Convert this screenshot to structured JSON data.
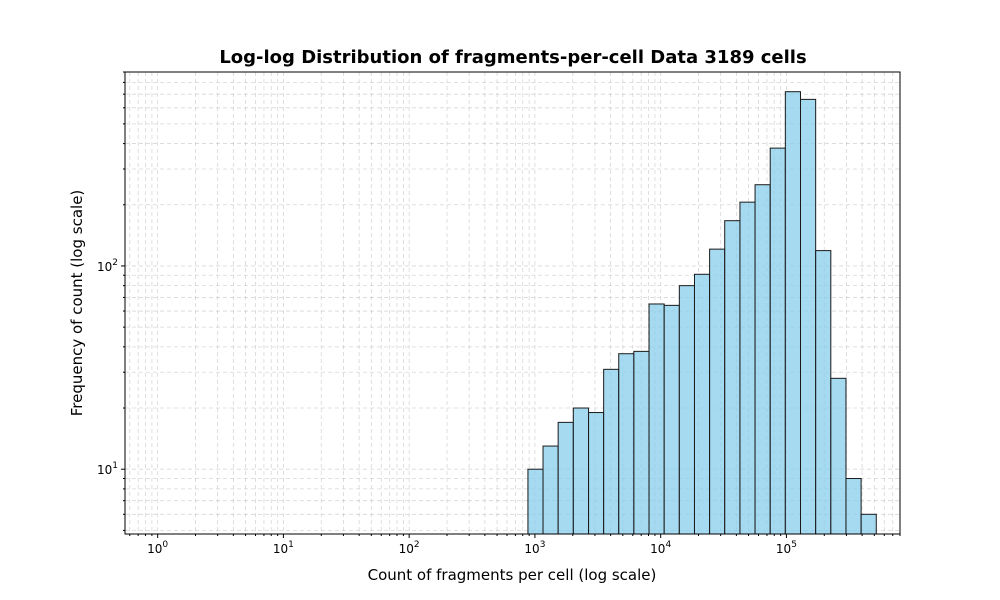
{
  "chart_data": {
    "type": "bar",
    "title": "Log-log Distribution of fragments-per-cell Data 3189 cells",
    "xlabel": "Count of fragments per cell (log scale)",
    "ylabel": "Frequency of count (log scale)",
    "x_scale": "log",
    "y_scale": "log",
    "xlim": [
      0.55,
      800000
    ],
    "ylim": [
      4.8,
      900
    ],
    "grid": true,
    "bar_color": "#87CEEB",
    "bar_edge_color": "#1a1a1a",
    "x_ticks": [
      {
        "base": "10",
        "exp": "0",
        "value": 1
      },
      {
        "base": "10",
        "exp": "1",
        "value": 10
      },
      {
        "base": "10",
        "exp": "2",
        "value": 100
      },
      {
        "base": "10",
        "exp": "3",
        "value": 1000
      },
      {
        "base": "10",
        "exp": "4",
        "value": 10000
      },
      {
        "base": "10",
        "exp": "5",
        "value": 100000
      }
    ],
    "y_ticks": [
      {
        "base": "10",
        "exp": "1",
        "value": 10
      },
      {
        "base": "10",
        "exp": "2",
        "value": 100
      }
    ],
    "bins": [
      {
        "left": 880,
        "right": 1160,
        "count": 10
      },
      {
        "left": 1160,
        "right": 1530,
        "count": 13
      },
      {
        "left": 1530,
        "right": 2020,
        "count": 17
      },
      {
        "left": 2020,
        "right": 2670,
        "count": 20
      },
      {
        "left": 2670,
        "right": 3520,
        "count": 19
      },
      {
        "left": 3520,
        "right": 4640,
        "count": 31
      },
      {
        "left": 4640,
        "right": 6120,
        "count": 37
      },
      {
        "left": 6120,
        "right": 8080,
        "count": 38
      },
      {
        "left": 8080,
        "right": 10660,
        "count": 65
      },
      {
        "left": 10660,
        "right": 14070,
        "count": 64
      },
      {
        "left": 14070,
        "right": 18570,
        "count": 80
      },
      {
        "left": 18570,
        "right": 24500,
        "count": 91
      },
      {
        "left": 24500,
        "right": 32300,
        "count": 121
      },
      {
        "left": 32300,
        "right": 42700,
        "count": 167
      },
      {
        "left": 42700,
        "right": 56300,
        "count": 206
      },
      {
        "left": 56300,
        "right": 74300,
        "count": 251
      },
      {
        "left": 74300,
        "right": 98000,
        "count": 380
      },
      {
        "left": 98000,
        "right": 129400,
        "count": 720
      },
      {
        "left": 129400,
        "right": 170800,
        "count": 660
      },
      {
        "left": 170800,
        "right": 225400,
        "count": 119
      },
      {
        "left": 225400,
        "right": 297500,
        "count": 28
      },
      {
        "left": 297500,
        "right": 392600,
        "count": 9
      },
      {
        "left": 392600,
        "right": 518200,
        "count": 6
      }
    ]
  }
}
